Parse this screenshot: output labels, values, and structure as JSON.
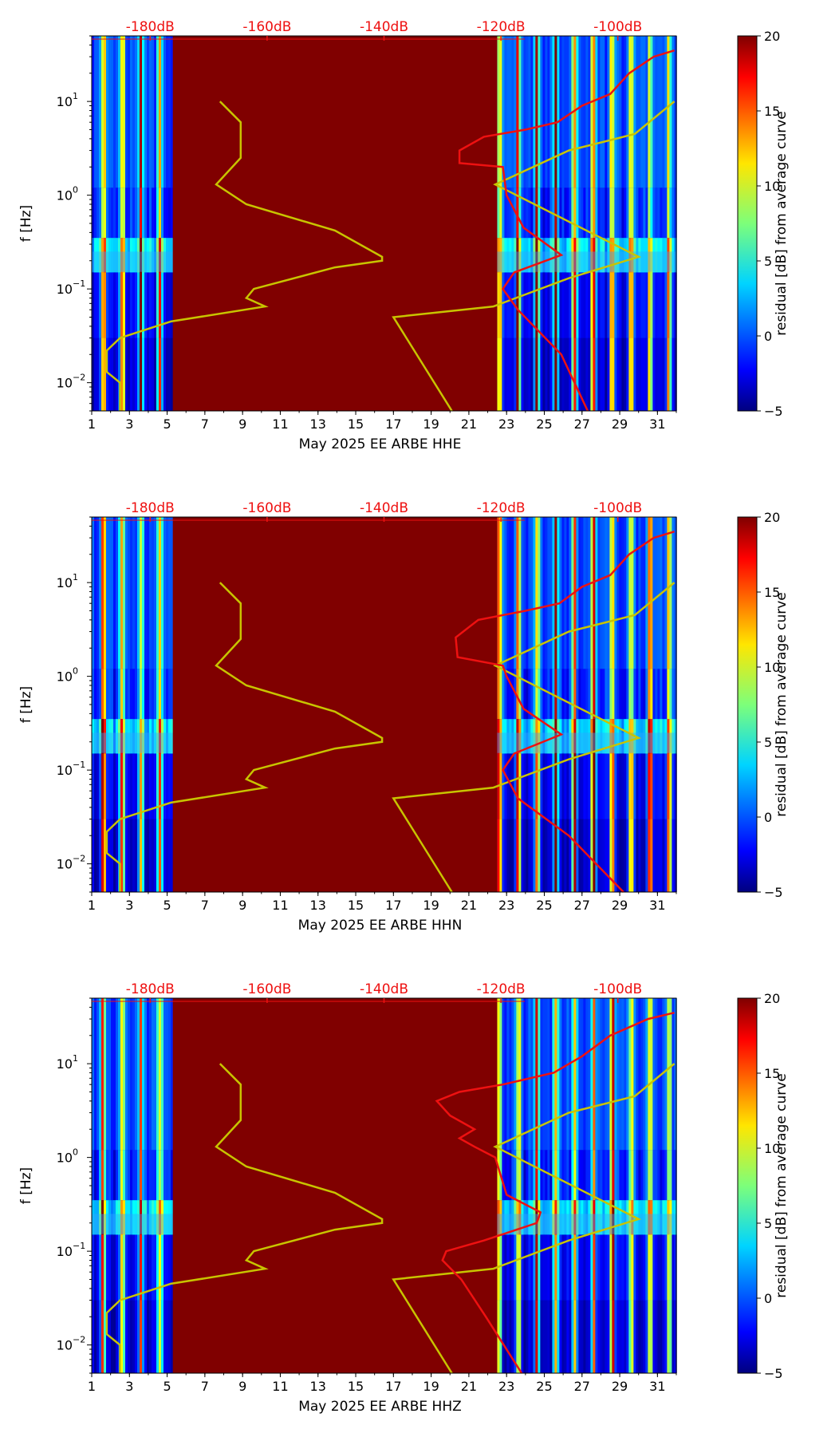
{
  "chart_data": [
    {
      "type": "heatmap",
      "station_label": "May 2025 EE ARBE  HHE",
      "ylabel": "f [Hz]",
      "colorbar_label": "residual [dB] from average curve",
      "colorbar_ticks": [
        "20",
        "15",
        "10",
        "5",
        "0",
        "−5"
      ],
      "colorbar_range": [
        -5,
        20
      ],
      "x_ticks": [
        "1",
        "3",
        "5",
        "7",
        "9",
        "11",
        "13",
        "15",
        "17",
        "19",
        "21",
        "23",
        "25",
        "27",
        "29",
        "31"
      ],
      "x_range": [
        1,
        32
      ],
      "y_ticks": [
        {
          "label": "10",
          "exp": "1",
          "value": 10
        },
        {
          "label": "10",
          "exp": "0",
          "value": 1
        },
        {
          "label": "10",
          "exp": "−1",
          "value": 0.1
        },
        {
          "label": "10",
          "exp": "−2",
          "value": 0.01
        }
      ],
      "y_range": [
        0.005,
        50
      ],
      "top_axis_ticks": [
        "-180dB",
        "-160dB",
        "-140dB",
        "-120dB",
        "-100dB"
      ],
      "top_axis_range_db": [
        -190,
        -90
      ],
      "data_gap_days": [
        5.3,
        22.5
      ],
      "gap_residual_db": 20,
      "model_curve_yellow": [
        [
          2.5,
          0.005
        ],
        [
          2.5,
          0.01
        ],
        [
          1.8,
          0.013
        ],
        [
          1.8,
          0.022
        ],
        [
          2.5,
          0.03
        ],
        [
          5.2,
          0.045
        ],
        [
          10.2,
          0.065
        ],
        [
          9.2,
          0.08
        ],
        [
          9.6,
          0.1
        ],
        [
          13.9,
          0.17
        ],
        [
          16.4,
          0.2
        ],
        [
          16.4,
          0.22
        ],
        [
          13.9,
          0.42
        ],
        [
          9.2,
          0.8
        ],
        [
          7.6,
          1.3
        ],
        [
          8.9,
          2.5
        ],
        [
          8.9,
          6
        ],
        [
          7.8,
          10
        ]
      ],
      "model_curve_yellow_right": [
        [
          20.1,
          0.005
        ],
        [
          17.0,
          0.05
        ],
        [
          22.3,
          0.065
        ],
        [
          26.3,
          0.13
        ],
        [
          30.0,
          0.22
        ],
        [
          22.4,
          1.3
        ],
        [
          26.3,
          3.0
        ],
        [
          29.8,
          4.5
        ],
        [
          31.9,
          10
        ]
      ],
      "psd_curve_red": [
        [
          27.3,
          0.005
        ],
        [
          25.9,
          0.02
        ],
        [
          23.6,
          0.06
        ],
        [
          22.8,
          0.1
        ],
        [
          23.4,
          0.15
        ],
        [
          25.9,
          0.23
        ],
        [
          23.9,
          0.45
        ],
        [
          23.0,
          1.0
        ],
        [
          22.8,
          2.0
        ],
        [
          20.5,
          2.2
        ],
        [
          20.5,
          3.0
        ],
        [
          21.8,
          4.2
        ],
        [
          24.0,
          5.0
        ],
        [
          25.7,
          6.0
        ],
        [
          27.0,
          9.0
        ],
        [
          28.5,
          12
        ],
        [
          29.5,
          20
        ],
        [
          30.8,
          30
        ],
        [
          31.9,
          35
        ]
      ]
    },
    {
      "type": "heatmap",
      "station_label": "May 2025 EE ARBE  HHN",
      "ylabel": "f [Hz]",
      "colorbar_label": "residual [dB] from average curve",
      "colorbar_ticks": [
        "20",
        "15",
        "10",
        "5",
        "0",
        "−5"
      ],
      "colorbar_range": [
        -5,
        20
      ],
      "x_ticks": [
        "1",
        "3",
        "5",
        "7",
        "9",
        "11",
        "13",
        "15",
        "17",
        "19",
        "21",
        "23",
        "25",
        "27",
        "29",
        "31"
      ],
      "x_range": [
        1,
        32
      ],
      "y_ticks": [
        {
          "label": "10",
          "exp": "1",
          "value": 10
        },
        {
          "label": "10",
          "exp": "0",
          "value": 1
        },
        {
          "label": "10",
          "exp": "−1",
          "value": 0.1
        },
        {
          "label": "10",
          "exp": "−2",
          "value": 0.01
        }
      ],
      "y_range": [
        0.005,
        50
      ],
      "top_axis_ticks": [
        "-180dB",
        "-160dB",
        "-140dB",
        "-120dB",
        "-100dB"
      ],
      "top_axis_range_db": [
        -190,
        -90
      ],
      "data_gap_days": [
        5.3,
        22.5
      ],
      "gap_residual_db": 20,
      "model_curve_yellow": [
        [
          2.5,
          0.005
        ],
        [
          2.5,
          0.01
        ],
        [
          1.8,
          0.013
        ],
        [
          1.8,
          0.022
        ],
        [
          2.5,
          0.03
        ],
        [
          5.2,
          0.045
        ],
        [
          10.2,
          0.065
        ],
        [
          9.2,
          0.08
        ],
        [
          9.6,
          0.1
        ],
        [
          13.9,
          0.17
        ],
        [
          16.4,
          0.2
        ],
        [
          16.4,
          0.22
        ],
        [
          13.9,
          0.42
        ],
        [
          9.2,
          0.8
        ],
        [
          7.6,
          1.3
        ],
        [
          8.9,
          2.5
        ],
        [
          8.9,
          6
        ],
        [
          7.8,
          10
        ]
      ],
      "model_curve_yellow_right": [
        [
          20.1,
          0.005
        ],
        [
          17.0,
          0.05
        ],
        [
          22.3,
          0.065
        ],
        [
          26.3,
          0.13
        ],
        [
          30.0,
          0.22
        ],
        [
          22.4,
          1.3
        ],
        [
          26.3,
          3.0
        ],
        [
          29.8,
          4.5
        ],
        [
          31.9,
          10
        ]
      ],
      "psd_curve_red": [
        [
          29.2,
          0.005
        ],
        [
          26.3,
          0.02
        ],
        [
          23.6,
          0.05
        ],
        [
          22.8,
          0.1
        ],
        [
          23.4,
          0.15
        ],
        [
          25.9,
          0.24
        ],
        [
          23.9,
          0.45
        ],
        [
          23.0,
          1.0
        ],
        [
          22.8,
          1.3
        ],
        [
          20.4,
          1.6
        ],
        [
          20.3,
          2.6
        ],
        [
          21.5,
          4.0
        ],
        [
          24.0,
          5.0
        ],
        [
          25.8,
          6.0
        ],
        [
          27.0,
          9.0
        ],
        [
          28.5,
          12
        ],
        [
          29.5,
          20
        ],
        [
          30.8,
          30
        ],
        [
          31.9,
          35
        ]
      ]
    },
    {
      "type": "heatmap",
      "station_label": "May 2025 EE ARBE  HHZ",
      "ylabel": "f [Hz]",
      "colorbar_label": "residual [dB] from average curve",
      "colorbar_ticks": [
        "20",
        "15",
        "10",
        "5",
        "0",
        "−5"
      ],
      "colorbar_range": [
        -5,
        20
      ],
      "x_ticks": [
        "1",
        "3",
        "5",
        "7",
        "9",
        "11",
        "13",
        "15",
        "17",
        "19",
        "21",
        "23",
        "25",
        "27",
        "29",
        "31"
      ],
      "x_range": [
        1,
        32
      ],
      "y_ticks": [
        {
          "label": "10",
          "exp": "1",
          "value": 10
        },
        {
          "label": "10",
          "exp": "0",
          "value": 1
        },
        {
          "label": "10",
          "exp": "−1",
          "value": 0.1
        },
        {
          "label": "10",
          "exp": "−2",
          "value": 0.01
        }
      ],
      "y_range": [
        0.005,
        50
      ],
      "top_axis_ticks": [
        "-180dB",
        "-160dB",
        "-140dB",
        "-120dB",
        "-100dB"
      ],
      "top_axis_range_db": [
        -190,
        -90
      ],
      "data_gap_days": [
        5.3,
        22.5
      ],
      "gap_residual_db": 20,
      "model_curve_yellow": [
        [
          2.5,
          0.005
        ],
        [
          2.5,
          0.01
        ],
        [
          1.8,
          0.013
        ],
        [
          1.8,
          0.022
        ],
        [
          2.5,
          0.03
        ],
        [
          5.2,
          0.045
        ],
        [
          10.2,
          0.065
        ],
        [
          9.2,
          0.08
        ],
        [
          9.6,
          0.1
        ],
        [
          13.9,
          0.17
        ],
        [
          16.4,
          0.2
        ],
        [
          16.4,
          0.22
        ],
        [
          13.9,
          0.42
        ],
        [
          9.2,
          0.8
        ],
        [
          7.6,
          1.3
        ],
        [
          8.9,
          2.5
        ],
        [
          8.9,
          6
        ],
        [
          7.8,
          10
        ]
      ],
      "model_curve_yellow_right": [
        [
          20.1,
          0.005
        ],
        [
          17.0,
          0.05
        ],
        [
          22.3,
          0.065
        ],
        [
          26.3,
          0.13
        ],
        [
          30.0,
          0.22
        ],
        [
          22.4,
          1.3
        ],
        [
          26.3,
          3.0
        ],
        [
          29.8,
          4.5
        ],
        [
          31.9,
          10
        ]
      ],
      "psd_curve_red": [
        [
          23.8,
          0.005
        ],
        [
          21.9,
          0.02
        ],
        [
          20.6,
          0.05
        ],
        [
          19.6,
          0.08
        ],
        [
          19.8,
          0.1
        ],
        [
          21.8,
          0.13
        ],
        [
          24.6,
          0.2
        ],
        [
          24.8,
          0.26
        ],
        [
          23.0,
          0.4
        ],
        [
          22.4,
          1.0
        ],
        [
          21.3,
          1.3
        ],
        [
          20.5,
          1.6
        ],
        [
          21.3,
          2.0
        ],
        [
          20.0,
          2.8
        ],
        [
          19.3,
          4.0
        ],
        [
          20.5,
          5.0
        ],
        [
          22.8,
          6.0
        ],
        [
          25.5,
          8.0
        ],
        [
          27.0,
          12
        ],
        [
          28.5,
          20
        ],
        [
          30.5,
          30
        ],
        [
          31.9,
          35
        ]
      ]
    }
  ]
}
